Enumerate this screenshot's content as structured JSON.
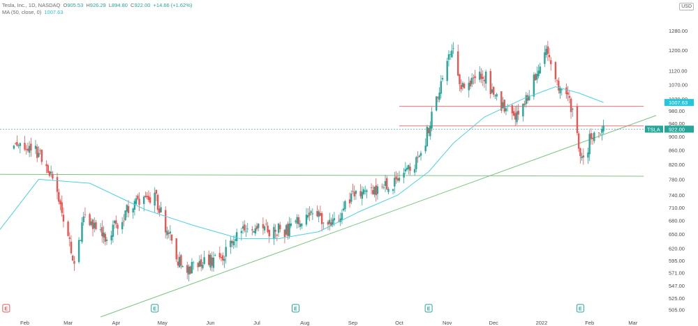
{
  "header": {
    "title": "Tesla, Inc., 1D, NASDAQ",
    "o_label": "O",
    "o": "905.53",
    "h_label": "H",
    "h": "926.29",
    "l_label": "L",
    "l": "894.80",
    "c_label": "C",
    "c": "922.00",
    "change": "+14.66 (+1.62%)",
    "ma_label": "MA (50, close, 0)",
    "ma_value": "1007.63"
  },
  "currency": "USD",
  "colors": {
    "up": "#26a69a",
    "down": "#ef5350",
    "ma": "#4dd0e1",
    "trend": "#7bc47f",
    "resistance": "#e57373",
    "ticker_badge": "#26a69a",
    "ma_badge": "#26c6da"
  },
  "badges": {
    "ma": "1007.63",
    "ticker": "TSLA",
    "price": "922.00"
  },
  "chart_data": {
    "type": "candlestick",
    "y_ticks": [
      "1280.00",
      "1200.00",
      "1120.00",
      "1070.00",
      "1020.00",
      "980.00",
      "940.00",
      "900.00",
      "860.00",
      "820.00",
      "780.00",
      "740.00",
      "710.00",
      "680.00",
      "650.00",
      "620.00",
      "595.00",
      "571.00",
      "547.00",
      "525.00",
      "505.00"
    ],
    "y_scale": "log",
    "ylim": [
      493,
      1360
    ],
    "x_ticks": [
      "Feb",
      "Mar",
      "Apr",
      "May",
      "Jun",
      "Jul",
      "Aug",
      "Sep",
      "Oct",
      "Nov",
      "Dec",
      "2022",
      "Feb",
      "Mar"
    ],
    "x_tick_dates": [
      "2021-02-01",
      "2021-03-01",
      "2021-04-01",
      "2021-05-01",
      "2021-06-01",
      "2021-07-01",
      "2021-08-01",
      "2021-09-01",
      "2021-10-01",
      "2021-11-01",
      "2021-12-01",
      "2022-01-01",
      "2022-02-01",
      "2022-03-01"
    ],
    "xlim": [
      "2021-01-16",
      "2022-03-16"
    ],
    "ohlc_anchors": [
      {
        "date": "2021-01-25",
        "close": 880
      },
      {
        "date": "2021-02-08",
        "close": 860
      },
      {
        "date": "2021-02-19",
        "close": 781
      },
      {
        "date": "2021-03-05",
        "close": 597
      },
      {
        "date": "2021-03-12",
        "close": 693
      },
      {
        "date": "2021-03-25",
        "close": 640
      },
      {
        "date": "2021-04-14",
        "close": 732
      },
      {
        "date": "2021-04-26",
        "close": 738
      },
      {
        "date": "2021-05-12",
        "close": 589
      },
      {
        "date": "2021-05-21",
        "close": 580
      },
      {
        "date": "2021-06-10",
        "close": 610
      },
      {
        "date": "2021-06-25",
        "close": 672
      },
      {
        "date": "2021-07-09",
        "close": 660
      },
      {
        "date": "2021-07-21",
        "close": 660
      },
      {
        "date": "2021-08-06",
        "close": 700
      },
      {
        "date": "2021-08-19",
        "close": 673
      },
      {
        "date": "2021-08-31",
        "close": 735
      },
      {
        "date": "2021-09-15",
        "close": 755
      },
      {
        "date": "2021-09-30",
        "close": 775
      },
      {
        "date": "2021-10-15",
        "close": 843
      },
      {
        "date": "2021-10-25",
        "close": 1024
      },
      {
        "date": "2021-11-04",
        "close": 1229
      },
      {
        "date": "2021-11-10",
        "close": 1067
      },
      {
        "date": "2021-11-24",
        "close": 1116
      },
      {
        "date": "2021-12-03",
        "close": 1014
      },
      {
        "date": "2021-12-14",
        "close": 958
      },
      {
        "date": "2021-12-22",
        "close": 1008
      },
      {
        "date": "2022-01-03",
        "close": 1199
      },
      {
        "date": "2022-01-11",
        "close": 1064
      },
      {
        "date": "2022-01-20",
        "close": 996
      },
      {
        "date": "2022-01-27",
        "close": 829
      },
      {
        "date": "2022-02-04",
        "close": 923
      },
      {
        "date": "2022-02-10",
        "close": 922
      }
    ],
    "ma_series": {
      "name": "MA (50, close, 0)",
      "points": [
        {
          "date": "2021-01-16",
          "value": 660
        },
        {
          "date": "2021-02-10",
          "value": 780
        },
        {
          "date": "2021-03-15",
          "value": 770
        },
        {
          "date": "2021-04-20",
          "value": 705
        },
        {
          "date": "2021-05-20",
          "value": 670
        },
        {
          "date": "2021-06-20",
          "value": 640
        },
        {
          "date": "2021-07-15",
          "value": 640
        },
        {
          "date": "2021-08-10",
          "value": 655
        },
        {
          "date": "2021-09-05",
          "value": 700
        },
        {
          "date": "2021-09-30",
          "value": 740
        },
        {
          "date": "2021-10-20",
          "value": 800
        },
        {
          "date": "2021-11-05",
          "value": 880
        },
        {
          "date": "2021-11-25",
          "value": 960
        },
        {
          "date": "2021-12-20",
          "value": 1020
        },
        {
          "date": "2022-01-10",
          "value": 1062
        },
        {
          "date": "2022-01-25",
          "value": 1040
        },
        {
          "date": "2022-02-10",
          "value": 1007.63
        }
      ]
    },
    "drawings": [
      {
        "kind": "trendline",
        "color": "trend",
        "from": {
          "date": "2021-03-22",
          "value": 493
        },
        "to": {
          "date": "2022-03-16",
          "value": 965
        }
      },
      {
        "kind": "trendline",
        "color": "trend",
        "from": {
          "date": "2021-01-16",
          "value": 793
        },
        "to": {
          "date": "2022-03-08",
          "value": 788
        }
      },
      {
        "kind": "hline",
        "color": "resistance",
        "from": "2021-10-01",
        "to": "2022-03-08",
        "value": 995
      },
      {
        "kind": "hline",
        "color": "resistance",
        "from": "2021-10-01",
        "to": "2022-03-08",
        "value": 932
      }
    ],
    "events": [
      {
        "date": "2021-01-20",
        "label": "E",
        "color": "down"
      },
      {
        "date": "2021-04-26",
        "label": "E",
        "color": "up"
      },
      {
        "date": "2021-07-26",
        "label": "E",
        "color": "up"
      },
      {
        "date": "2021-10-20",
        "label": "E",
        "color": "up"
      },
      {
        "date": "2022-01-26",
        "label": "E",
        "color": "up"
      }
    ]
  }
}
